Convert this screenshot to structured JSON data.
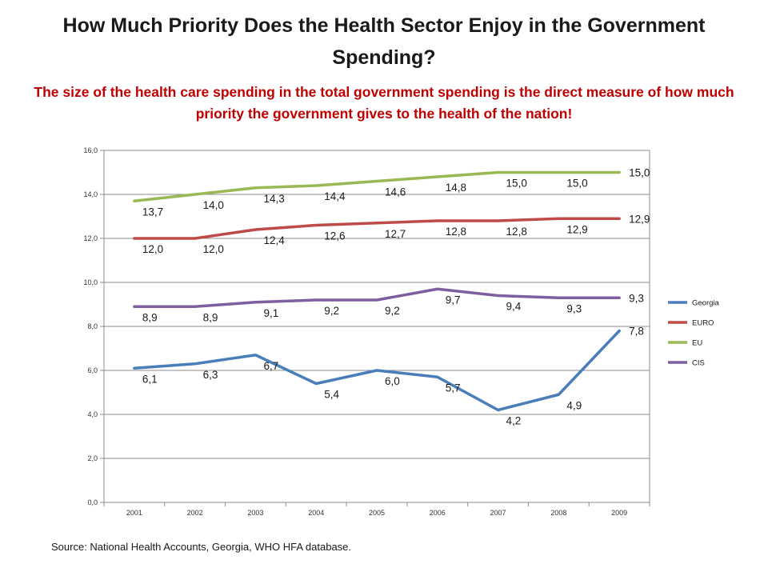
{
  "title": "How Much Priority Does the Health Sector Enjoy in the Government Spending?",
  "subtitle": "The size of the health care spending in the total government spending is the direct measure of how much priority the government gives to the health of the nation!",
  "source": "Source: National Health Accounts, Georgia, WHO HFA database.",
  "chart_data": {
    "type": "line",
    "categories": [
      "2001",
      "2002",
      "2003",
      "2004",
      "2005",
      "2006",
      "2007",
      "2008",
      "2009"
    ],
    "ylim": [
      0,
      16
    ],
    "yticks": [
      "0,0",
      "2,0",
      "4,0",
      "6,0",
      "8,0",
      "10,0",
      "12,0",
      "14,0",
      "16,0"
    ],
    "grid": true,
    "legend_position": "right",
    "series": [
      {
        "name": "Georgia",
        "color": "#4a7ebb",
        "values": [
          6.1,
          6.3,
          6.7,
          5.4,
          6.0,
          5.7,
          4.2,
          4.9,
          7.8
        ],
        "labels": [
          "6,1",
          "6,3",
          "6,7",
          "5,4",
          "6,0",
          "5,7",
          "4,2",
          "4,9",
          "7,8"
        ]
      },
      {
        "name": "EURO",
        "color": "#be4b48",
        "values": [
          12.0,
          12.0,
          12.4,
          12.6,
          12.7,
          12.8,
          12.8,
          12.9,
          12.9
        ],
        "labels": [
          "12,0",
          "12,0",
          "12,4",
          "12,6",
          "12,7",
          "12,8",
          "12,8",
          "12,9",
          "12,9"
        ]
      },
      {
        "name": "EU",
        "color": "#98b954",
        "values": [
          13.7,
          14.0,
          14.3,
          14.4,
          14.6,
          14.8,
          15.0,
          15.0,
          15.0
        ],
        "labels": [
          "13,7",
          "14,0",
          "14,3",
          "14,4",
          "14,6",
          "14,8",
          "15,0",
          "15,0",
          "15,0"
        ]
      },
      {
        "name": "CIS",
        "color": "#7d5fa0",
        "values": [
          8.9,
          8.9,
          9.1,
          9.2,
          9.2,
          9.7,
          9.4,
          9.3,
          9.3
        ],
        "labels": [
          "8,9",
          "8,9",
          "9,1",
          "9,2",
          "9,2",
          "9,7",
          "9,4",
          "9,3",
          "9,3"
        ]
      }
    ]
  }
}
